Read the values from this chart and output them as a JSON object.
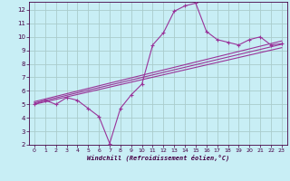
{
  "xlabel": "Windchill (Refroidissement éolien,°C)",
  "background_color": "#c8eef5",
  "grid_color": "#aacccc",
  "line_color": "#993399",
  "xlim": [
    -0.5,
    23.5
  ],
  "ylim": [
    2,
    12.6
  ],
  "xtick_labels": [
    "0",
    "1",
    "2",
    "3",
    "4",
    "5",
    "6",
    "7",
    "8",
    "9",
    "10",
    "11",
    "12",
    "13",
    "14",
    "15",
    "16",
    "17",
    "18",
    "19",
    "20",
    "21",
    "22",
    "23"
  ],
  "xticks": [
    0,
    1,
    2,
    3,
    4,
    5,
    6,
    7,
    8,
    9,
    10,
    11,
    12,
    13,
    14,
    15,
    16,
    17,
    18,
    19,
    20,
    21,
    22,
    23
  ],
  "yticks": [
    2,
    3,
    4,
    5,
    6,
    7,
    8,
    9,
    10,
    11,
    12
  ],
  "main_x": [
    0,
    1,
    2,
    3,
    4,
    5,
    6,
    7,
    8,
    9,
    10,
    11,
    12,
    13,
    14,
    15,
    16,
    17,
    18,
    19,
    20,
    21,
    22,
    23
  ],
  "main_y": [
    5.0,
    5.3,
    5.0,
    5.5,
    5.3,
    4.7,
    4.1,
    2.1,
    4.7,
    5.7,
    6.5,
    9.4,
    10.3,
    11.9,
    12.3,
    12.5,
    10.4,
    9.8,
    9.6,
    9.4,
    9.8,
    10.0,
    9.4,
    9.5
  ],
  "line1_x": [
    0,
    23
  ],
  "line1_y": [
    5.0,
    9.2
  ],
  "line2_x": [
    0,
    23
  ],
  "line2_y": [
    5.1,
    9.45
  ],
  "line3_x": [
    0,
    23
  ],
  "line3_y": [
    5.2,
    9.7
  ]
}
